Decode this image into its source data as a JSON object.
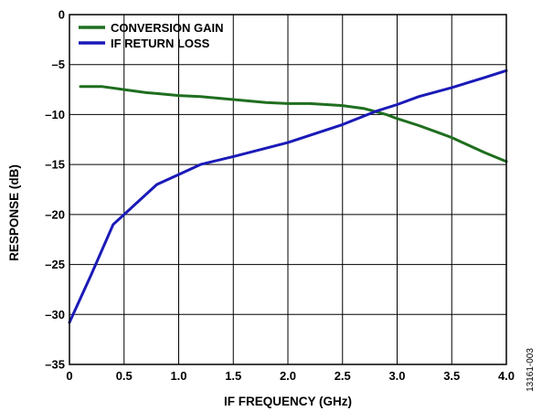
{
  "chart_data": {
    "type": "line",
    "xlabel": "IF FREQUENCY (GHz)",
    "ylabel": "RESPONSE (dB)",
    "xlim": [
      0,
      4.0
    ],
    "ylim": [
      -35,
      0
    ],
    "xticks": [
      "0",
      "0.5",
      "1.0",
      "1.5",
      "2.0",
      "2.5",
      "3.0",
      "3.5",
      "4.0"
    ],
    "yticks": [
      "0",
      "–5",
      "–10",
      "–15",
      "–20",
      "–25",
      "–30",
      "–35"
    ],
    "grid": true,
    "legend_position": "top-left",
    "figure_id": "13161-003",
    "series": [
      {
        "name": "CONVERSION GAIN",
        "color": "#1f6e1f",
        "x": [
          0.1,
          0.3,
          0.5,
          0.7,
          0.8,
          1.0,
          1.2,
          1.5,
          1.8,
          2.0,
          2.2,
          2.5,
          2.7,
          2.8,
          2.9,
          3.0,
          3.2,
          3.4,
          3.5,
          3.6,
          3.8,
          4.0
        ],
        "y": [
          -7.2,
          -7.2,
          -7.5,
          -7.8,
          -7.9,
          -8.1,
          -8.2,
          -8.5,
          -8.8,
          -8.9,
          -8.9,
          -9.1,
          -9.4,
          -9.7,
          -10.0,
          -10.4,
          -11.1,
          -11.9,
          -12.3,
          -12.8,
          -13.8,
          -14.7
        ]
      },
      {
        "name": "IF RETURN LOSS",
        "color": "#1a1ab8",
        "x": [
          0.0,
          0.2,
          0.4,
          0.5,
          0.6,
          0.8,
          1.0,
          1.2,
          1.5,
          2.0,
          2.5,
          2.8,
          3.0,
          3.2,
          3.5,
          3.8,
          4.0
        ],
        "y": [
          -30.8,
          -26.0,
          -21.0,
          -20.0,
          -19.0,
          -17.0,
          -16.0,
          -15.0,
          -14.2,
          -12.8,
          -11.0,
          -9.7,
          -9.0,
          -8.2,
          -7.3,
          -6.3,
          -5.6
        ]
      }
    ]
  }
}
